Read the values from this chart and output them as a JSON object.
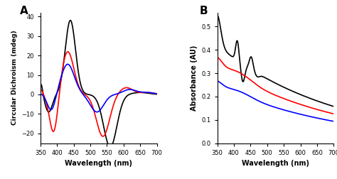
{
  "panel_A_label": "A",
  "panel_B_label": "B",
  "xlabel": "Wavelength (nm)",
  "ylabel_A": "Circular Dichroism (mdeg)",
  "ylabel_B": "Absorbance (AU)",
  "xlim": [
    350,
    700
  ],
  "ylim_A": [
    -25,
    42
  ],
  "ylim_B": [
    0,
    0.56
  ],
  "yticks_A": [
    -20,
    -10,
    0,
    10,
    20,
    30,
    40
  ],
  "yticks_B": [
    0,
    0.1,
    0.2,
    0.3,
    0.4,
    0.5
  ],
  "xticks": [
    350,
    400,
    450,
    500,
    550,
    600,
    650,
    700
  ],
  "line_colors": [
    "black",
    "red",
    "blue"
  ],
  "lw": 1.2
}
